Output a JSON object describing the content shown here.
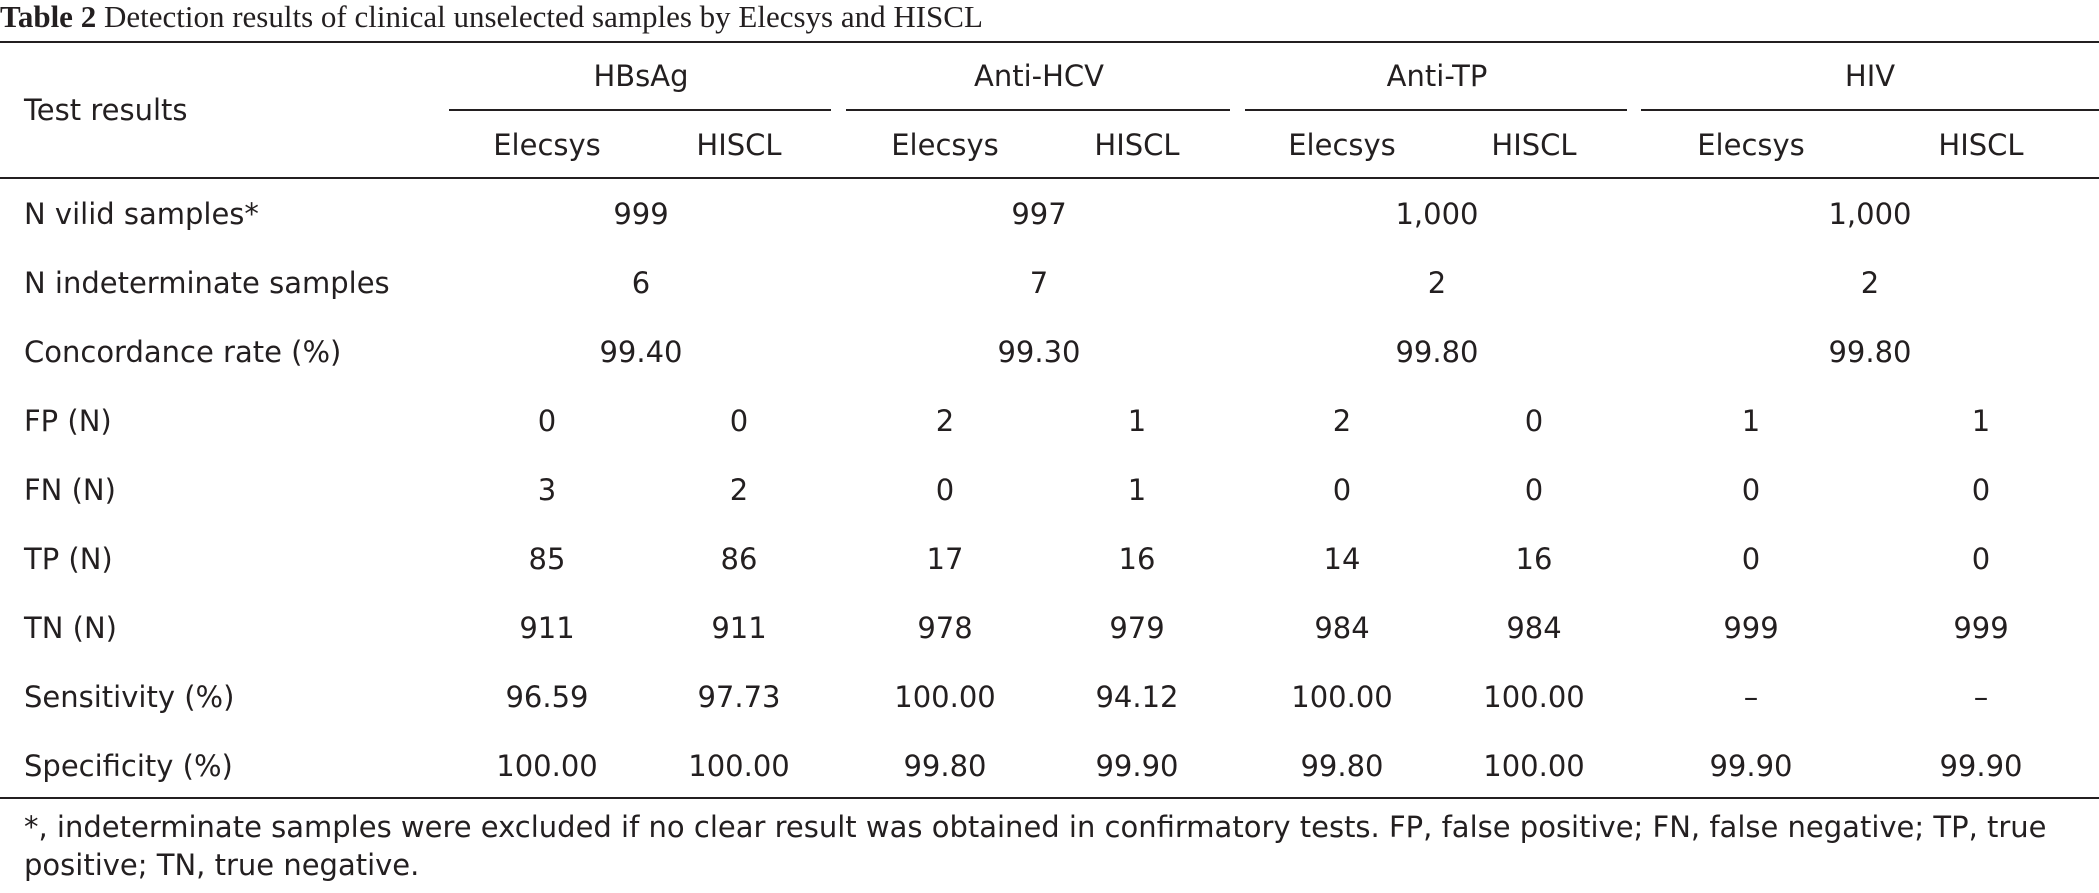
{
  "caption": {
    "label": "Table 2",
    "title": "Detection results of clinical unselected samples by Elecsys and HISCL"
  },
  "table": {
    "stub_header": "Test results",
    "groups": [
      "HBsAg",
      "Anti-HCV",
      "Anti-TP",
      "HIV"
    ],
    "subheaders": [
      "Elecsys",
      "HISCL"
    ],
    "merged_rows": [
      {
        "label": "N vilid samples*",
        "values": [
          "999",
          "997",
          "1,000",
          "1,000"
        ]
      },
      {
        "label": "N indeterminate samples",
        "values": [
          "6",
          "7",
          "2",
          "2"
        ]
      },
      {
        "label": "Concordance rate (%)",
        "values": [
          "99.40",
          "99.30",
          "99.80",
          "99.80"
        ]
      }
    ],
    "rows": [
      {
        "label": "FP (N)",
        "values": [
          "0",
          "0",
          "2",
          "1",
          "2",
          "0",
          "1",
          "1"
        ]
      },
      {
        "label": "FN (N)",
        "values": [
          "3",
          "2",
          "0",
          "1",
          "0",
          "0",
          "0",
          "0"
        ]
      },
      {
        "label": "TP (N)",
        "values": [
          "85",
          "86",
          "17",
          "16",
          "14",
          "16",
          "0",
          "0"
        ]
      },
      {
        "label": "TN (N)",
        "values": [
          "911",
          "911",
          "978",
          "979",
          "984",
          "984",
          "999",
          "999"
        ]
      },
      {
        "label": "Sensitivity (%)",
        "values": [
          "96.59",
          "97.73",
          "100.00",
          "94.12",
          "100.00",
          "100.00",
          "–",
          "–"
        ]
      },
      {
        "label": "Specificity (%)",
        "values": [
          "100.00",
          "100.00",
          "99.80",
          "99.90",
          "99.80",
          "100.00",
          "99.90",
          "99.90"
        ]
      }
    ]
  },
  "footnote": "*, indeterminate samples were excluded if no clear result was obtained in confirmatory tests. FP, false positive; FN, false negative; TP, true positive; TN, true negative."
}
